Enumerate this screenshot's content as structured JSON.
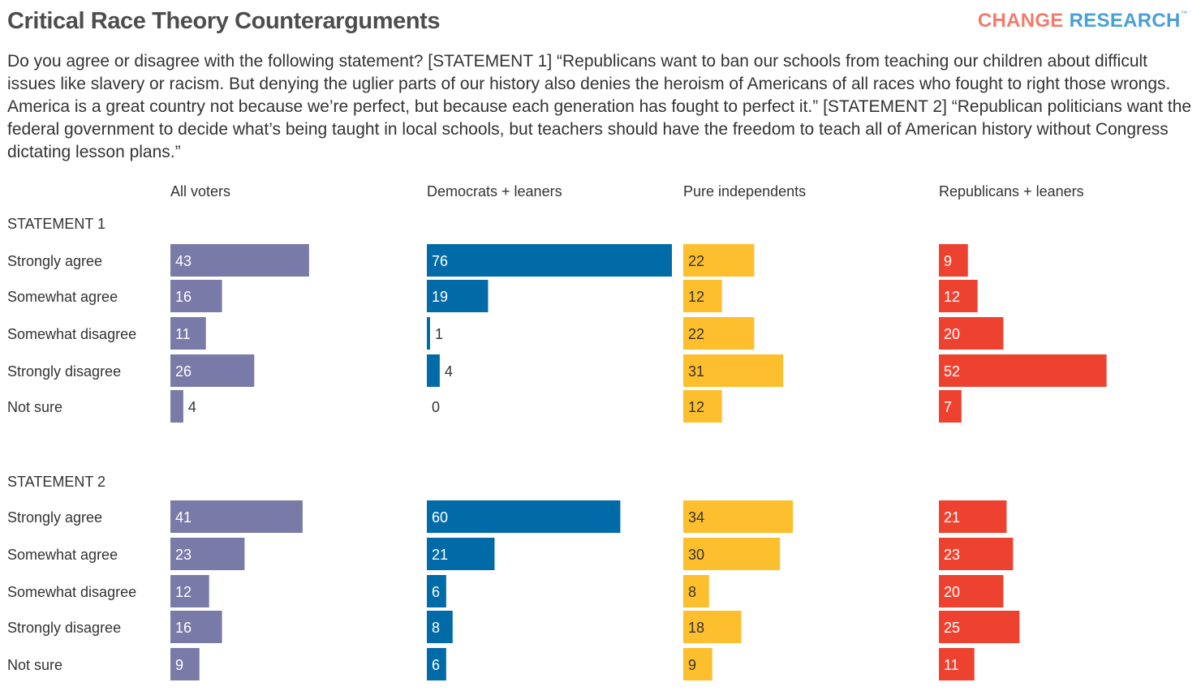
{
  "header": {
    "title": "Critical Race Theory Counterarguments",
    "logo_part1": "CHANGE",
    "logo_part2": "RESEARCH",
    "logo_tm": "™",
    "subtitle": "Do you agree or disagree with the following statement? [STATEMENT 1] “Republicans want to ban our schools from teaching our children about difficult issues like slavery or racism. But denying the uglier parts of our history also denies the heroism of Americans of all races who fought to right those wrongs. America is a great country not because we’re perfect, but because each generation has fought to perfect it.” [STATEMENT 2] “Republican politicians want the federal government to decide what’s being taught in local schools, but teachers should have the freedom to teach all of American history without Congress dictating lesson plans.”"
  },
  "colors": {
    "logo_change": "#f07c6c",
    "logo_research": "#4a9fd8",
    "all_voters": "#7a7aa8",
    "democrats": "#006ba6",
    "independents": "#fdbf2d",
    "republicans": "#ee4231",
    "label_on_bar": "#ffffff",
    "label_on_yellow": "#333333",
    "label_outside": "#333333"
  },
  "chart_data": {
    "type": "bar",
    "orientation": "horizontal",
    "scale_max": 76,
    "categories": [
      "Strongly agree",
      "Somewhat agree",
      "Somewhat disagree",
      "Strongly disagree",
      "Not sure"
    ],
    "groups": [
      "All voters",
      "Democrats + leaners",
      "Pure independents",
      "Republicans + leaners"
    ],
    "panels": [
      {
        "name": "STATEMENT 1",
        "series": [
          {
            "name": "All voters",
            "values": [
              43,
              16,
              11,
              26,
              4
            ]
          },
          {
            "name": "Democrats + leaners",
            "values": [
              76,
              19,
              1,
              4,
              0
            ]
          },
          {
            "name": "Pure independents",
            "values": [
              22,
              12,
              22,
              31,
              12
            ]
          },
          {
            "name": "Republicans + leaners",
            "values": [
              9,
              12,
              20,
              52,
              7
            ]
          }
        ]
      },
      {
        "name": "STATEMENT 2",
        "series": [
          {
            "name": "All voters",
            "values": [
              41,
              23,
              12,
              16,
              9
            ]
          },
          {
            "name": "Democrats + leaners",
            "values": [
              60,
              21,
              6,
              8,
              6
            ]
          },
          {
            "name": "Pure independents",
            "values": [
              34,
              30,
              8,
              18,
              9
            ]
          },
          {
            "name": "Republicans + leaners",
            "values": [
              21,
              23,
              20,
              25,
              11
            ]
          }
        ]
      }
    ]
  }
}
